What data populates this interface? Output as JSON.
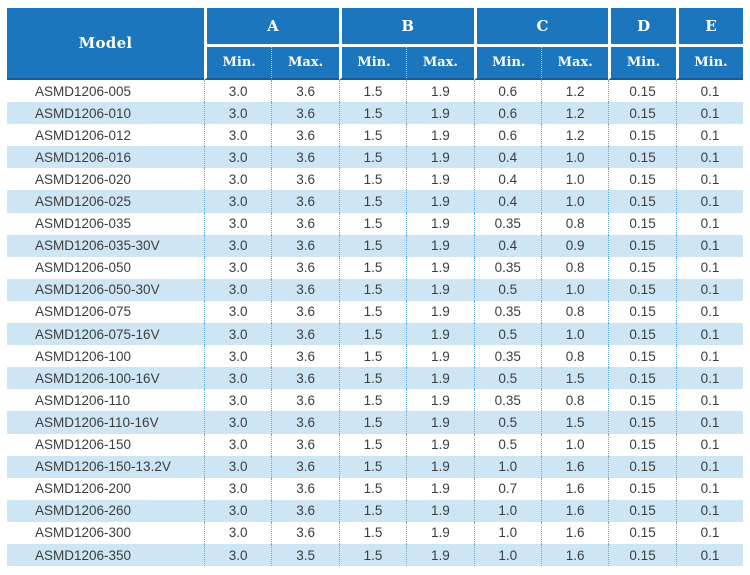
{
  "colors": {
    "header_bg": "#1b76bd",
    "header_text": "#ffffff",
    "header_bottom_line": "#135e9a",
    "row_bg": "#ffffff",
    "row_alt_bg": "#cee5f4",
    "cell_text": "#3d3d3d",
    "dotted_divider": "#66abdd"
  },
  "table": {
    "header": {
      "model_label": "Model",
      "groups": [
        {
          "label": "A",
          "subs": [
            "Min.",
            "Max."
          ]
        },
        {
          "label": "B",
          "subs": [
            "Min.",
            "Max."
          ]
        },
        {
          "label": "C",
          "subs": [
            "Min.",
            "Max."
          ]
        },
        {
          "label": "D",
          "subs": [
            "Min."
          ]
        },
        {
          "label": "E",
          "subs": [
            "Min."
          ]
        }
      ]
    },
    "rows": [
      {
        "model": "ASMD1206-005",
        "values": [
          "3.0",
          "3.6",
          "1.5",
          "1.9",
          "0.6",
          "1.2",
          "0.15",
          "0.1"
        ]
      },
      {
        "model": "ASMD1206-010",
        "values": [
          "3.0",
          "3.6",
          "1.5",
          "1.9",
          "0.6",
          "1.2",
          "0.15",
          "0.1"
        ]
      },
      {
        "model": "ASMD1206-012",
        "values": [
          "3.0",
          "3.6",
          "1.5",
          "1.9",
          "0.6",
          "1.2",
          "0.15",
          "0.1"
        ]
      },
      {
        "model": "ASMD1206-016",
        "values": [
          "3.0",
          "3.6",
          "1.5",
          "1.9",
          "0.4",
          "1.0",
          "0.15",
          "0.1"
        ]
      },
      {
        "model": "ASMD1206-020",
        "values": [
          "3.0",
          "3.6",
          "1.5",
          "1.9",
          "0.4",
          "1.0",
          "0.15",
          "0.1"
        ]
      },
      {
        "model": "ASMD1206-025",
        "values": [
          "3.0",
          "3.6",
          "1.5",
          "1.9",
          "0.4",
          "1.0",
          "0.15",
          "0.1"
        ]
      },
      {
        "model": "ASMD1206-035",
        "values": [
          "3.0",
          "3.6",
          "1.5",
          "1.9",
          "0.35",
          "0.8",
          "0.15",
          "0.1"
        ]
      },
      {
        "model": "ASMD1206-035-30V",
        "values": [
          "3.0",
          "3.6",
          "1.5",
          "1.9",
          "0.4",
          "0.9",
          "0.15",
          "0.1"
        ]
      },
      {
        "model": "ASMD1206-050",
        "values": [
          "3.0",
          "3.6",
          "1.5",
          "1.9",
          "0.35",
          "0.8",
          "0.15",
          "0.1"
        ]
      },
      {
        "model": "ASMD1206-050-30V",
        "values": [
          "3.0",
          "3.6",
          "1.5",
          "1.9",
          "0.5",
          "1.0",
          "0.15",
          "0.1"
        ]
      },
      {
        "model": "ASMD1206-075",
        "values": [
          "3.0",
          "3.6",
          "1.5",
          "1.9",
          "0.35",
          "0.8",
          "0.15",
          "0.1"
        ]
      },
      {
        "model": "ASMD1206-075-16V",
        "values": [
          "3.0",
          "3.6",
          "1.5",
          "1.9",
          "0.5",
          "1.0",
          "0.15",
          "0.1"
        ]
      },
      {
        "model": "ASMD1206-100",
        "values": [
          "3.0",
          "3.6",
          "1.5",
          "1.9",
          "0.35",
          "0.8",
          "0.15",
          "0.1"
        ]
      },
      {
        "model": "ASMD1206-100-16V",
        "values": [
          "3.0",
          "3.6",
          "1.5",
          "1.9",
          "0.5",
          "1.5",
          "0.15",
          "0.1"
        ]
      },
      {
        "model": "ASMD1206-110",
        "values": [
          "3.0",
          "3.6",
          "1.5",
          "1.9",
          "0.35",
          "0.8",
          "0.15",
          "0.1"
        ]
      },
      {
        "model": "ASMD1206-110-16V",
        "values": [
          "3.0",
          "3.6",
          "1.5",
          "1.9",
          "0.5",
          "1.5",
          "0.15",
          "0.1"
        ]
      },
      {
        "model": "ASMD1206-150",
        "values": [
          "3.0",
          "3.6",
          "1.5",
          "1.9",
          "0.5",
          "1.0",
          "0.15",
          "0.1"
        ]
      },
      {
        "model": "ASMD1206-150-13.2V",
        "values": [
          "3.0",
          "3.6",
          "1.5",
          "1.9",
          "1.0",
          "1.6",
          "0.15",
          "0.1"
        ]
      },
      {
        "model": "ASMD1206-200",
        "values": [
          "3.0",
          "3.6",
          "1.5",
          "1.9",
          "0.7",
          "1.6",
          "0.15",
          "0.1"
        ]
      },
      {
        "model": "ASMD1206-260",
        "values": [
          "3.0",
          "3.6",
          "1.5",
          "1.9",
          "1.0",
          "1.6",
          "0.15",
          "0.1"
        ]
      },
      {
        "model": "ASMD1206-300",
        "values": [
          "3.0",
          "3.6",
          "1.5",
          "1.9",
          "1.0",
          "1.6",
          "0.15",
          "0.1"
        ]
      },
      {
        "model": "ASMD1206-350",
        "values": [
          "3.0",
          "3.5",
          "1.5",
          "1.9",
          "1.0",
          "1.6",
          "0.15",
          "0.1"
        ]
      }
    ]
  }
}
